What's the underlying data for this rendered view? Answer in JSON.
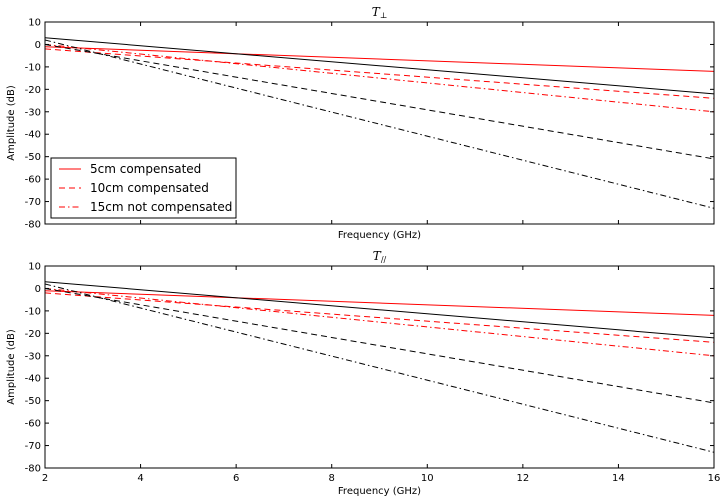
{
  "chart_data": [
    {
      "type": "line",
      "title": "T",
      "title_sub": "⊥",
      "xlabel": "Frequency (GHz)",
      "ylabel": "Amplitude (dB)",
      "xlim": [
        2,
        16
      ],
      "ylim": [
        -80,
        10
      ],
      "xticks": [
        2,
        4,
        6,
        8,
        10,
        12,
        14,
        16
      ],
      "yticks": [
        10,
        0,
        -10,
        -20,
        -30,
        -40,
        -50,
        -60,
        -70,
        -80
      ],
      "show_xticklabels": false,
      "legend": {
        "placement": "lower-left",
        "entries": [
          "5cm compensated",
          "10cm compensated",
          "15cm not compensated"
        ]
      },
      "series": [
        {
          "color": "#ff0000",
          "style": "solid",
          "x": [
            2,
            16
          ],
          "y": [
            -1.0,
            -12.0
          ]
        },
        {
          "color": "#ff0000",
          "style": "dashed",
          "x": [
            2,
            16
          ],
          "y": [
            -2.0,
            -24.0
          ]
        },
        {
          "color": "#ff0000",
          "style": "dashdot",
          "x": [
            2,
            16
          ],
          "y": [
            0.0,
            -30.0
          ]
        },
        {
          "color": "#000000",
          "style": "solid",
          "x": [
            2,
            16
          ],
          "y": [
            3.0,
            -22.0
          ]
        },
        {
          "color": "#000000",
          "style": "dashed",
          "x": [
            2,
            16
          ],
          "y": [
            0.0,
            -51.0
          ]
        },
        {
          "color": "#000000",
          "style": "dashdot",
          "x": [
            2,
            16
          ],
          "y": [
            2.0,
            -73.0
          ]
        }
      ]
    },
    {
      "type": "line",
      "title": "T",
      "title_sub": "//",
      "xlabel": "Frequency (GHz)",
      "ylabel": "Amplitude (dB)",
      "xlim": [
        2,
        16
      ],
      "ylim": [
        -80,
        10
      ],
      "xticks": [
        2,
        4,
        6,
        8,
        10,
        12,
        14,
        16
      ],
      "yticks": [
        10,
        0,
        -10,
        -20,
        -30,
        -40,
        -50,
        -60,
        -70,
        -80
      ],
      "show_xticklabels": true,
      "series": [
        {
          "color": "#ff0000",
          "style": "solid",
          "x": [
            2,
            16
          ],
          "y": [
            -1.0,
            -12.0
          ]
        },
        {
          "color": "#ff0000",
          "style": "dashed",
          "x": [
            2,
            16
          ],
          "y": [
            -2.0,
            -24.0
          ]
        },
        {
          "color": "#ff0000",
          "style": "dashdot",
          "x": [
            2,
            16
          ],
          "y": [
            0.0,
            -30.0
          ]
        },
        {
          "color": "#000000",
          "style": "solid",
          "x": [
            2,
            16
          ],
          "y": [
            3.0,
            -22.0
          ]
        },
        {
          "color": "#000000",
          "style": "dashed",
          "x": [
            2,
            16
          ],
          "y": [
            0.0,
            -51.0
          ]
        },
        {
          "color": "#000000",
          "style": "dashdot",
          "x": [
            2,
            16
          ],
          "y": [
            2.0,
            -73.0
          ]
        }
      ]
    }
  ]
}
